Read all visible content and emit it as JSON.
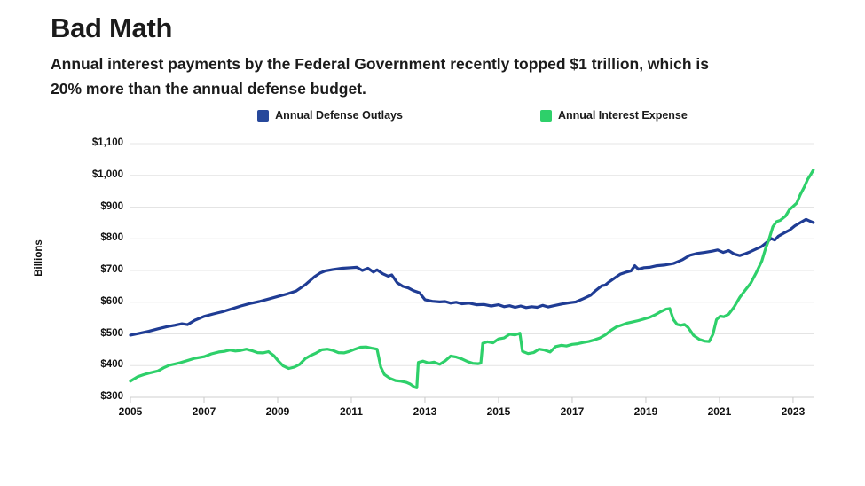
{
  "header": {
    "title": "Bad Math",
    "subtitle_line1": "Annual interest payments by the Federal Government recently topped $1 trillion, which is",
    "subtitle_line2": "20% more than the annual defense budget."
  },
  "legend": [
    {
      "label": "Annual Defense Outlays",
      "color": "#27489B"
    },
    {
      "label": "Annual Interest Expense",
      "color": "#2ED06A"
    }
  ],
  "chart_data": {
    "type": "line",
    "title": "Bad Math",
    "xlabel": "",
    "ylabel": "Billions",
    "units": "$ Billions",
    "ylim": [
      300,
      1100
    ],
    "xlim": [
      2005,
      2023.58
    ],
    "grid": true,
    "legend_position": "top",
    "yticks": [
      {
        "value": 300,
        "label": "$300"
      },
      {
        "value": 400,
        "label": "$400"
      },
      {
        "value": 500,
        "label": "$500"
      },
      {
        "value": 600,
        "label": "$600"
      },
      {
        "value": 700,
        "label": "$700"
      },
      {
        "value": 800,
        "label": "$800"
      },
      {
        "value": 900,
        "label": "$900"
      },
      {
        "value": 1000,
        "label": "$1,000"
      },
      {
        "value": 1100,
        "label": "$1,100"
      }
    ],
    "xticks": [
      2005,
      2007,
      2009,
      2011,
      2013,
      2015,
      2017,
      2019,
      2021,
      2023
    ],
    "series": [
      {
        "name": "Annual Defense Outlays",
        "color": "#1F3C94",
        "points": [
          [
            2005.0,
            496
          ],
          [
            2005.25,
            502
          ],
          [
            2005.5,
            508
          ],
          [
            2005.75,
            516
          ],
          [
            2006.0,
            523
          ],
          [
            2006.2,
            527
          ],
          [
            2006.4,
            532
          ],
          [
            2006.55,
            529
          ],
          [
            2006.75,
            543
          ],
          [
            2007.0,
            555
          ],
          [
            2007.25,
            563
          ],
          [
            2007.5,
            570
          ],
          [
            2007.75,
            579
          ],
          [
            2008.0,
            588
          ],
          [
            2008.25,
            596
          ],
          [
            2008.5,
            602
          ],
          [
            2008.75,
            610
          ],
          [
            2009.0,
            618
          ],
          [
            2009.25,
            626
          ],
          [
            2009.5,
            635
          ],
          [
            2009.75,
            655
          ],
          [
            2010.0,
            680
          ],
          [
            2010.15,
            692
          ],
          [
            2010.3,
            699
          ],
          [
            2010.5,
            703
          ],
          [
            2010.75,
            707
          ],
          [
            2011.0,
            709
          ],
          [
            2011.15,
            710
          ],
          [
            2011.3,
            700
          ],
          [
            2011.45,
            707
          ],
          [
            2011.6,
            695
          ],
          [
            2011.7,
            702
          ],
          [
            2011.85,
            690
          ],
          [
            2012.0,
            682
          ],
          [
            2012.1,
            686
          ],
          [
            2012.25,
            661
          ],
          [
            2012.4,
            650
          ],
          [
            2012.55,
            645
          ],
          [
            2012.7,
            636
          ],
          [
            2012.85,
            630
          ],
          [
            2013.0,
            608
          ],
          [
            2013.2,
            603
          ],
          [
            2013.4,
            601
          ],
          [
            2013.55,
            602
          ],
          [
            2013.7,
            597
          ],
          [
            2013.85,
            600
          ],
          [
            2014.0,
            595
          ],
          [
            2014.2,
            597
          ],
          [
            2014.4,
            592
          ],
          [
            2014.6,
            593
          ],
          [
            2014.8,
            588
          ],
          [
            2015.0,
            592
          ],
          [
            2015.15,
            586
          ],
          [
            2015.3,
            589
          ],
          [
            2015.45,
            584
          ],
          [
            2015.6,
            588
          ],
          [
            2015.75,
            583
          ],
          [
            2015.9,
            586
          ],
          [
            2016.05,
            584
          ],
          [
            2016.2,
            590
          ],
          [
            2016.35,
            585
          ],
          [
            2016.5,
            589
          ],
          [
            2016.7,
            594
          ],
          [
            2016.9,
            598
          ],
          [
            2017.1,
            601
          ],
          [
            2017.3,
            611
          ],
          [
            2017.5,
            622
          ],
          [
            2017.65,
            638
          ],
          [
            2017.8,
            652
          ],
          [
            2017.9,
            654
          ],
          [
            2018.0,
            664
          ],
          [
            2018.15,
            676
          ],
          [
            2018.3,
            688
          ],
          [
            2018.45,
            694
          ],
          [
            2018.6,
            699
          ],
          [
            2018.7,
            715
          ],
          [
            2018.8,
            704
          ],
          [
            2018.95,
            709
          ],
          [
            2019.1,
            710
          ],
          [
            2019.3,
            715
          ],
          [
            2019.5,
            717
          ],
          [
            2019.75,
            722
          ],
          [
            2020.0,
            734
          ],
          [
            2020.2,
            748
          ],
          [
            2020.4,
            754
          ],
          [
            2020.6,
            757
          ],
          [
            2020.8,
            761
          ],
          [
            2020.95,
            765
          ],
          [
            2021.1,
            757
          ],
          [
            2021.25,
            763
          ],
          [
            2021.4,
            752
          ],
          [
            2021.55,
            747
          ],
          [
            2021.7,
            753
          ],
          [
            2021.85,
            760
          ],
          [
            2022.0,
            768
          ],
          [
            2022.15,
            776
          ],
          [
            2022.3,
            790
          ],
          [
            2022.4,
            801
          ],
          [
            2022.5,
            796
          ],
          [
            2022.6,
            808
          ],
          [
            2022.75,
            818
          ],
          [
            2022.9,
            827
          ],
          [
            2023.05,
            841
          ],
          [
            2023.2,
            851
          ],
          [
            2023.35,
            861
          ],
          [
            2023.45,
            856
          ],
          [
            2023.55,
            851
          ]
        ]
      },
      {
        "name": "Annual Interest Expense",
        "color": "#2ED06A",
        "points": [
          [
            2005.0,
            351
          ],
          [
            2005.2,
            365
          ],
          [
            2005.35,
            371
          ],
          [
            2005.5,
            376
          ],
          [
            2005.75,
            383
          ],
          [
            2005.9,
            393
          ],
          [
            2006.05,
            401
          ],
          [
            2006.2,
            405
          ],
          [
            2006.35,
            409
          ],
          [
            2006.5,
            414
          ],
          [
            2006.75,
            423
          ],
          [
            2007.0,
            428
          ],
          [
            2007.2,
            437
          ],
          [
            2007.4,
            443
          ],
          [
            2007.55,
            445
          ],
          [
            2007.7,
            449
          ],
          [
            2007.85,
            446
          ],
          [
            2008.0,
            448
          ],
          [
            2008.15,
            452
          ],
          [
            2008.3,
            447
          ],
          [
            2008.45,
            441
          ],
          [
            2008.6,
            440
          ],
          [
            2008.75,
            444
          ],
          [
            2008.9,
            431
          ],
          [
            2009.0,
            417
          ],
          [
            2009.15,
            399
          ],
          [
            2009.3,
            391
          ],
          [
            2009.45,
            395
          ],
          [
            2009.6,
            404
          ],
          [
            2009.75,
            422
          ],
          [
            2009.9,
            432
          ],
          [
            2010.05,
            440
          ],
          [
            2010.2,
            450
          ],
          [
            2010.35,
            452
          ],
          [
            2010.5,
            448
          ],
          [
            2010.65,
            441
          ],
          [
            2010.8,
            440
          ],
          [
            2010.95,
            445
          ],
          [
            2011.1,
            452
          ],
          [
            2011.25,
            458
          ],
          [
            2011.4,
            459
          ],
          [
            2011.55,
            455
          ],
          [
            2011.7,
            452
          ],
          [
            2011.8,
            395
          ],
          [
            2011.9,
            372
          ],
          [
            2012.05,
            360
          ],
          [
            2012.2,
            353
          ],
          [
            2012.35,
            351
          ],
          [
            2012.5,
            347
          ],
          [
            2012.6,
            342
          ],
          [
            2012.72,
            332
          ],
          [
            2012.78,
            330
          ],
          [
            2012.82,
            410
          ],
          [
            2012.95,
            414
          ],
          [
            2013.1,
            408
          ],
          [
            2013.25,
            411
          ],
          [
            2013.4,
            404
          ],
          [
            2013.55,
            415
          ],
          [
            2013.7,
            430
          ],
          [
            2013.85,
            427
          ],
          [
            2014.0,
            421
          ],
          [
            2014.15,
            413
          ],
          [
            2014.3,
            407
          ],
          [
            2014.45,
            406
          ],
          [
            2014.52,
            408
          ],
          [
            2014.57,
            470
          ],
          [
            2014.7,
            475
          ],
          [
            2014.85,
            472
          ],
          [
            2015.0,
            484
          ],
          [
            2015.15,
            487
          ],
          [
            2015.3,
            499
          ],
          [
            2015.45,
            497
          ],
          [
            2015.58,
            502
          ],
          [
            2015.65,
            445
          ],
          [
            2015.8,
            438
          ],
          [
            2015.95,
            441
          ],
          [
            2016.1,
            452
          ],
          [
            2016.25,
            449
          ],
          [
            2016.4,
            443
          ],
          [
            2016.55,
            460
          ],
          [
            2016.7,
            464
          ],
          [
            2016.85,
            462
          ],
          [
            2017.0,
            467
          ],
          [
            2017.15,
            469
          ],
          [
            2017.3,
            473
          ],
          [
            2017.45,
            476
          ],
          [
            2017.6,
            481
          ],
          [
            2017.75,
            487
          ],
          [
            2017.9,
            497
          ],
          [
            2018.05,
            511
          ],
          [
            2018.2,
            522
          ],
          [
            2018.35,
            528
          ],
          [
            2018.5,
            534
          ],
          [
            2018.65,
            538
          ],
          [
            2018.8,
            542
          ],
          [
            2018.95,
            547
          ],
          [
            2019.1,
            552
          ],
          [
            2019.25,
            560
          ],
          [
            2019.4,
            570
          ],
          [
            2019.55,
            578
          ],
          [
            2019.65,
            580
          ],
          [
            2019.75,
            545
          ],
          [
            2019.85,
            530
          ],
          [
            2019.95,
            527
          ],
          [
            2020.05,
            530
          ],
          [
            2020.15,
            520
          ],
          [
            2020.3,
            495
          ],
          [
            2020.45,
            483
          ],
          [
            2020.6,
            477
          ],
          [
            2020.72,
            476
          ],
          [
            2020.82,
            498
          ],
          [
            2020.92,
            545
          ],
          [
            2021.02,
            556
          ],
          [
            2021.12,
            554
          ],
          [
            2021.25,
            562
          ],
          [
            2021.4,
            585
          ],
          [
            2021.55,
            615
          ],
          [
            2021.7,
            638
          ],
          [
            2021.85,
            660
          ],
          [
            2022.0,
            693
          ],
          [
            2022.15,
            730
          ],
          [
            2022.25,
            768
          ],
          [
            2022.35,
            800
          ],
          [
            2022.45,
            838
          ],
          [
            2022.55,
            854
          ],
          [
            2022.65,
            858
          ],
          [
            2022.8,
            872
          ],
          [
            2022.9,
            892
          ],
          [
            2023.0,
            902
          ],
          [
            2023.1,
            913
          ],
          [
            2023.2,
            940
          ],
          [
            2023.3,
            962
          ],
          [
            2023.4,
            988
          ],
          [
            2023.48,
            1003
          ],
          [
            2023.55,
            1017
          ]
        ]
      }
    ]
  }
}
